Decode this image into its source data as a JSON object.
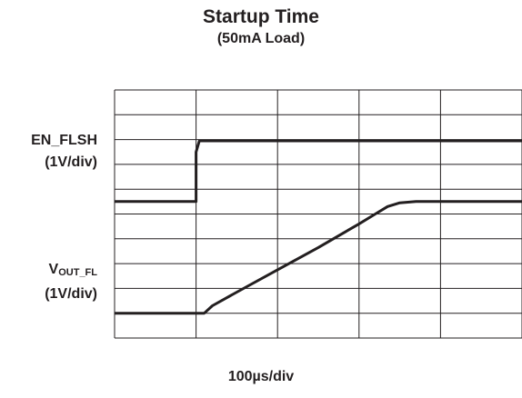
{
  "chart_data": {
    "type": "line",
    "title": "Startup Time",
    "subtitle": "(50mA Load)",
    "xlabel": "100µs/div",
    "grid": true,
    "divisions": {
      "x": 5,
      "y": 10
    },
    "xlim": [
      0,
      5
    ],
    "ylim": [
      0,
      10
    ],
    "line_color": "#231f20",
    "grid_color": "#231f20",
    "channels": [
      {
        "name_main": "EN_FLSH",
        "name_sub": "",
        "scale": "(1V/div)",
        "points": [
          [
            0,
            5.5
          ],
          [
            1.0,
            5.5
          ],
          [
            1.0,
            7.5
          ],
          [
            1.04,
            7.95
          ],
          [
            5,
            7.95
          ]
        ]
      },
      {
        "name_main": "V",
        "name_sub": "OUT_FL",
        "scale": "(1V/div)",
        "points": [
          [
            0,
            1.0
          ],
          [
            1.1,
            1.0
          ],
          [
            1.2,
            1.3
          ],
          [
            1.5,
            1.85
          ],
          [
            2.0,
            2.75
          ],
          [
            2.5,
            3.65
          ],
          [
            3.0,
            4.6
          ],
          [
            3.2,
            5.0
          ],
          [
            3.35,
            5.3
          ],
          [
            3.5,
            5.45
          ],
          [
            3.7,
            5.5
          ],
          [
            5,
            5.5
          ]
        ]
      }
    ]
  }
}
